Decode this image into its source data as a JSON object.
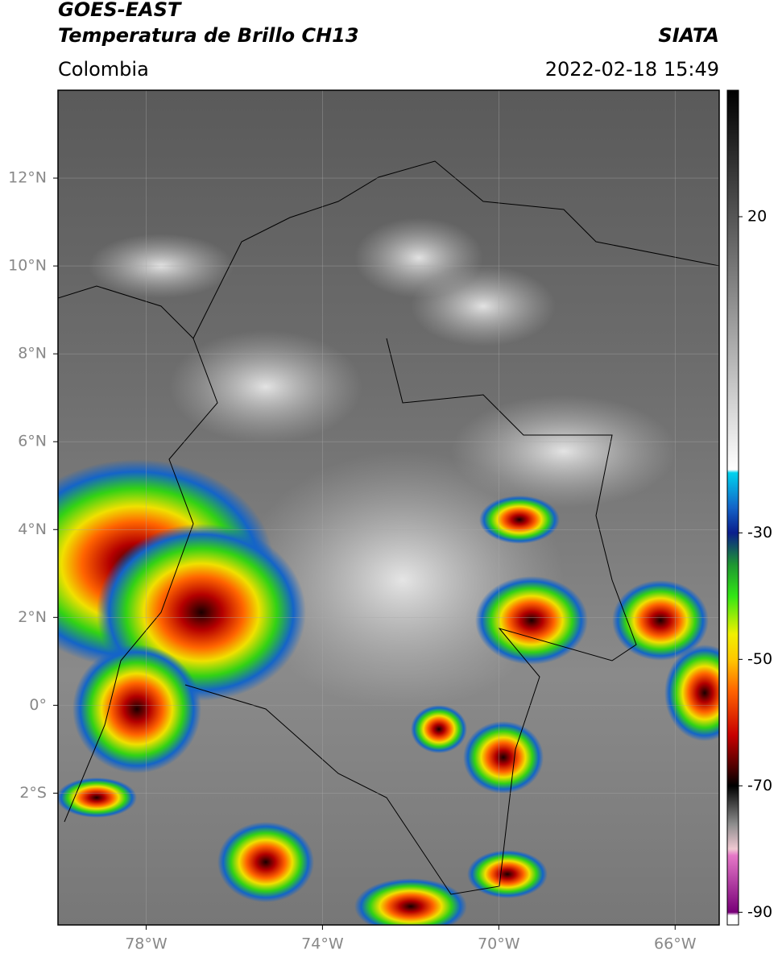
{
  "header": {
    "satellite": "GOES-EAST",
    "product": "Temperatura de Brillo CH13",
    "source": "SIATA",
    "region": "Colombia",
    "datetime": "2022-02-18 15:49"
  },
  "map": {
    "lon_range": [
      -80,
      -65
    ],
    "lat_range": [
      -5,
      14
    ],
    "xticks": [
      {
        "value": -78,
        "label": "78°W"
      },
      {
        "value": -74,
        "label": "74°W"
      },
      {
        "value": -70,
        "label": "70°W"
      },
      {
        "value": -66,
        "label": "66°W"
      }
    ],
    "yticks": [
      {
        "value": 12,
        "label": "12°N"
      },
      {
        "value": 10,
        "label": "10°N"
      },
      {
        "value": 8,
        "label": "8°N"
      },
      {
        "value": 6,
        "label": "6°N"
      },
      {
        "value": 4,
        "label": "4°N"
      },
      {
        "value": 2,
        "label": "2°N"
      },
      {
        "value": 0,
        "label": "0°"
      },
      {
        "value": -2,
        "label": "2°S"
      }
    ]
  },
  "colorbar": {
    "range": [
      -92,
      40
    ],
    "ticks": [
      20,
      -30,
      -50,
      -70,
      -90
    ],
    "stops": [
      {
        "value": 40,
        "color": "#000000"
      },
      {
        "value": -20,
        "color": "#ffffff"
      },
      {
        "value": -20.5,
        "color": "#00d2ee"
      },
      {
        "value": -26,
        "color": "#1464c8"
      },
      {
        "value": -30,
        "color": "#0a1e8c"
      },
      {
        "value": -35,
        "color": "#1e9632"
      },
      {
        "value": -40,
        "color": "#32e614"
      },
      {
        "value": -46,
        "color": "#f0f000"
      },
      {
        "value": -50,
        "color": "#ffc800"
      },
      {
        "value": -55,
        "color": "#ff6400"
      },
      {
        "value": -62,
        "color": "#c80000"
      },
      {
        "value": -67,
        "color": "#500000"
      },
      {
        "value": -70,
        "color": "#000000"
      },
      {
        "value": -76,
        "color": "#8c8c8c"
      },
      {
        "value": -80,
        "color": "#f0c8d2"
      },
      {
        "value": -81,
        "color": "#e678c8"
      },
      {
        "value": -90,
        "color": "#780078"
      },
      {
        "value": -90.5,
        "color": "#ffffff"
      }
    ]
  }
}
